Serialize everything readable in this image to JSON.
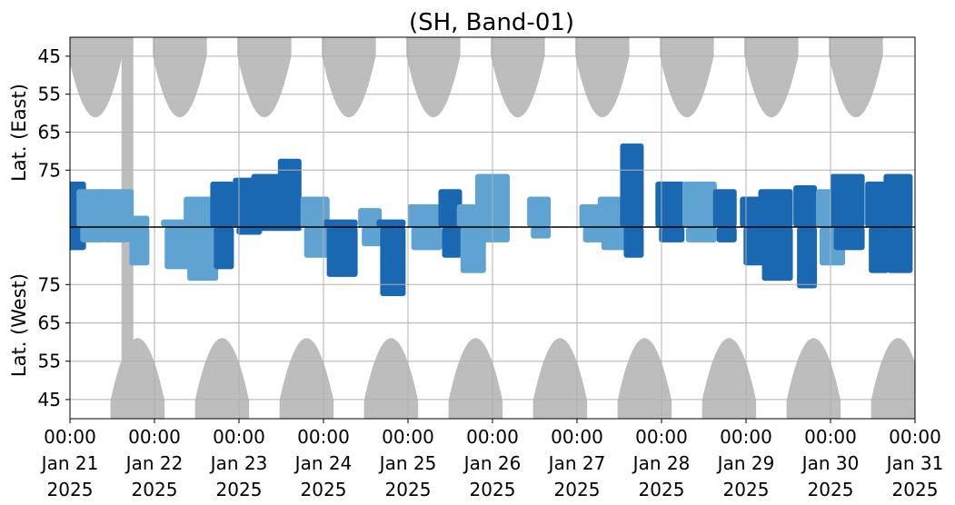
{
  "chart_data": {
    "type": "heatmap",
    "title": "(SH, Band-01)",
    "ylabel_top": "Lat. (East)",
    "ylabel_bottom": "Lat. (West)",
    "y_ticks_top": [
      "45",
      "55",
      "65",
      "75"
    ],
    "y_ticks_bottom": [
      "75",
      "65",
      "55",
      "45"
    ],
    "x_ticks": [
      {
        "time": "00:00",
        "date": "Jan 21",
        "year": "2025"
      },
      {
        "time": "00:00",
        "date": "Jan 22",
        "year": "2025"
      },
      {
        "time": "00:00",
        "date": "Jan 23",
        "year": "2025"
      },
      {
        "time": "00:00",
        "date": "Jan 24",
        "year": "2025"
      },
      {
        "time": "00:00",
        "date": "Jan 25",
        "year": "2025"
      },
      {
        "time": "00:00",
        "date": "Jan 26",
        "year": "2025"
      },
      {
        "time": "00:00",
        "date": "Jan 27",
        "year": "2025"
      },
      {
        "time": "00:00",
        "date": "Jan 28",
        "year": "2025"
      },
      {
        "time": "00:00",
        "date": "Jan 29",
        "year": "2025"
      },
      {
        "time": "00:00",
        "date": "Jan 30",
        "year": "2025"
      },
      {
        "time": "00:00",
        "date": "Jan 31",
        "year": "2025"
      }
    ],
    "x_range_days": [
      21,
      31
    ],
    "grid": true,
    "colors": {
      "strong": "#1a68b2",
      "weak": "#5fa3d2",
      "no_data": "#bdbdbd",
      "equator_line": "#000000",
      "grid": "#b0b0b0"
    },
    "no_data_top": [
      {
        "center_day": 21.3,
        "half_width_days": 0.32,
        "extent_deg": 48
      },
      {
        "center_day": 22.3,
        "half_width_days": 0.32,
        "extent_deg": 48
      },
      {
        "center_day": 23.3,
        "half_width_days": 0.32,
        "extent_deg": 48
      },
      {
        "center_day": 24.3,
        "half_width_days": 0.32,
        "extent_deg": 48
      },
      {
        "center_day": 25.3,
        "half_width_days": 0.32,
        "extent_deg": 48
      },
      {
        "center_day": 26.3,
        "half_width_days": 0.32,
        "extent_deg": 48
      },
      {
        "center_day": 27.3,
        "half_width_days": 0.32,
        "extent_deg": 48
      },
      {
        "center_day": 28.3,
        "half_width_days": 0.32,
        "extent_deg": 48
      },
      {
        "center_day": 29.3,
        "half_width_days": 0.32,
        "extent_deg": 48
      },
      {
        "center_day": 30.3,
        "half_width_days": 0.32,
        "extent_deg": 48
      }
    ],
    "no_data_bottom": [
      {
        "center_day": 21.8,
        "half_width_days": 0.32,
        "extent_deg": 48
      },
      {
        "center_day": 22.8,
        "half_width_days": 0.32,
        "extent_deg": 48
      },
      {
        "center_day": 23.8,
        "half_width_days": 0.32,
        "extent_deg": 48
      },
      {
        "center_day": 24.8,
        "half_width_days": 0.32,
        "extent_deg": 48
      },
      {
        "center_day": 25.8,
        "half_width_days": 0.32,
        "extent_deg": 48
      },
      {
        "center_day": 26.8,
        "half_width_days": 0.32,
        "extent_deg": 48
      },
      {
        "center_day": 27.8,
        "half_width_days": 0.32,
        "extent_deg": 48
      },
      {
        "center_day": 28.8,
        "half_width_days": 0.32,
        "extent_deg": 48
      },
      {
        "center_day": 29.8,
        "half_width_days": 0.32,
        "extent_deg": 48
      },
      {
        "center_day": 30.8,
        "half_width_days": 0.32,
        "extent_deg": 48
      }
    ],
    "no_data_full_bands": [
      {
        "day_start": 21.61,
        "day_end": 21.75
      }
    ],
    "activity": [
      {
        "day": 21.05,
        "top": 78,
        "bottom": 84,
        "i": 2
      },
      {
        "day": 21.25,
        "top": 80,
        "bottom": 86,
        "i": 1
      },
      {
        "day": 21.55,
        "top": 80,
        "bottom": 86,
        "i": 1
      },
      {
        "day": 21.8,
        "top": 87,
        "bottom": 80,
        "i": 1
      },
      {
        "day": 22.25,
        "top": 88,
        "bottom": 79,
        "i": 1
      },
      {
        "day": 22.55,
        "top": 82,
        "bottom": 76,
        "i": 1
      },
      {
        "day": 22.8,
        "top": 78,
        "bottom": 79,
        "i": 2
      },
      {
        "day": 23.1,
        "top": 77,
        "bottom": 88,
        "i": 2
      },
      {
        "day": 23.35,
        "top": 76,
        "bottom": 89,
        "i": 2
      },
      {
        "day": 23.6,
        "top": 72,
        "bottom": 89,
        "i": 2
      },
      {
        "day": 23.9,
        "top": 82,
        "bottom": 82,
        "i": 1
      },
      {
        "day": 24.2,
        "top": 88,
        "bottom": 77,
        "i": 2
      },
      {
        "day": 24.55,
        "top": 85,
        "bottom": 85,
        "i": 1
      },
      {
        "day": 24.8,
        "top": 88,
        "bottom": 72,
        "i": 2
      },
      {
        "day": 25.2,
        "top": 84,
        "bottom": 84,
        "i": 1
      },
      {
        "day": 25.5,
        "top": 80,
        "bottom": 82,
        "i": 2
      },
      {
        "day": 25.75,
        "top": 84,
        "bottom": 78,
        "i": 1
      },
      {
        "day": 26.0,
        "top": 76,
        "bottom": 86,
        "i": 1
      },
      {
        "day": 26.55,
        "top": 82,
        "bottom": 87,
        "i": 1
      },
      {
        "day": 27.2,
        "top": 84,
        "bottom": 86,
        "i": 1
      },
      {
        "day": 27.45,
        "top": 82,
        "bottom": 84,
        "i": 1
      },
      {
        "day": 27.65,
        "top": 68,
        "bottom": 82,
        "i": 2
      },
      {
        "day": 28.1,
        "top": 78,
        "bottom": 86,
        "i": 2
      },
      {
        "day": 28.45,
        "top": 78,
        "bottom": 86,
        "i": 1
      },
      {
        "day": 28.75,
        "top": 80,
        "bottom": 86,
        "i": 2
      },
      {
        "day": 29.1,
        "top": 82,
        "bottom": 80,
        "i": 2
      },
      {
        "day": 29.35,
        "top": 80,
        "bottom": 76,
        "i": 2
      },
      {
        "day": 29.7,
        "top": 79,
        "bottom": 74,
        "i": 2
      },
      {
        "day": 30.0,
        "top": 80,
        "bottom": 80,
        "i": 1
      },
      {
        "day": 30.2,
        "top": 76,
        "bottom": 84,
        "i": 2
      },
      {
        "day": 30.55,
        "top": 78,
        "bottom": 78,
        "i": 2
      },
      {
        "day": 30.8,
        "top": 76,
        "bottom": 78,
        "i": 2
      }
    ]
  }
}
